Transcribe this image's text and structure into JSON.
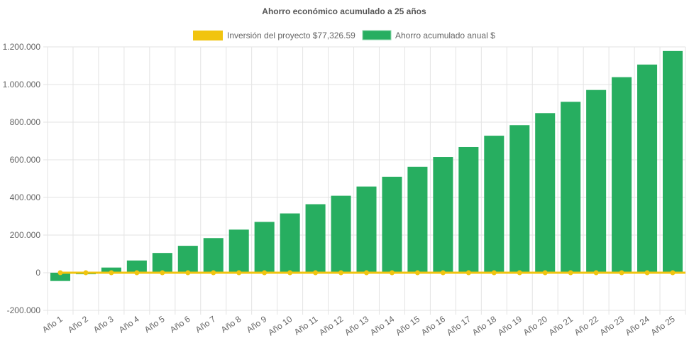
{
  "chart_data": {
    "type": "bar",
    "title": "Ahorro económico acumulado a 25 años",
    "categories": [
      "Año 1",
      "Año 2",
      "Año 3",
      "Año 4",
      "Año 5",
      "Año 6",
      "Año 7",
      "Año 8",
      "Año 9",
      "Año 10",
      "Año 11",
      "Año 12",
      "Año 13",
      "Año 14",
      "Año 15",
      "Año 16",
      "Año 17",
      "Año 18",
      "Año 19",
      "Año 20",
      "Año 21",
      "Año 22",
      "Año 23",
      "Año 24",
      "Año 25"
    ],
    "series": [
      {
        "name": "Inversión del proyecto $77,326.59",
        "type": "line",
        "color": "#f1c40f",
        "values": [
          0,
          0,
          0,
          0,
          0,
          0,
          0,
          0,
          0,
          0,
          0,
          0,
          0,
          0,
          0,
          0,
          0,
          0,
          0,
          0,
          0,
          0,
          0,
          0,
          0
        ]
      },
      {
        "name": "Ahorro acumulado anual $",
        "type": "bar",
        "color": "#27ae60",
        "values": [
          -44000,
          -8000,
          27500,
          65000,
          105000,
          143000,
          184000,
          229000,
          270000,
          315000,
          364000,
          409000,
          458000,
          510000,
          563000,
          615000,
          668000,
          728000,
          784000,
          848000,
          908000,
          971000,
          1039000,
          1106000,
          1178000
        ]
      }
    ],
    "ylim": [
      -200000,
      1200000
    ],
    "yticks": [
      -200000,
      0,
      200000,
      400000,
      600000,
      800000,
      1000000,
      1200000
    ],
    "ytick_labels": [
      "-200.000",
      "0",
      "200.000",
      "400.000",
      "600.000",
      "800.000",
      "1.000.000",
      "1.200.000"
    ],
    "grid": true,
    "legend": "top"
  }
}
